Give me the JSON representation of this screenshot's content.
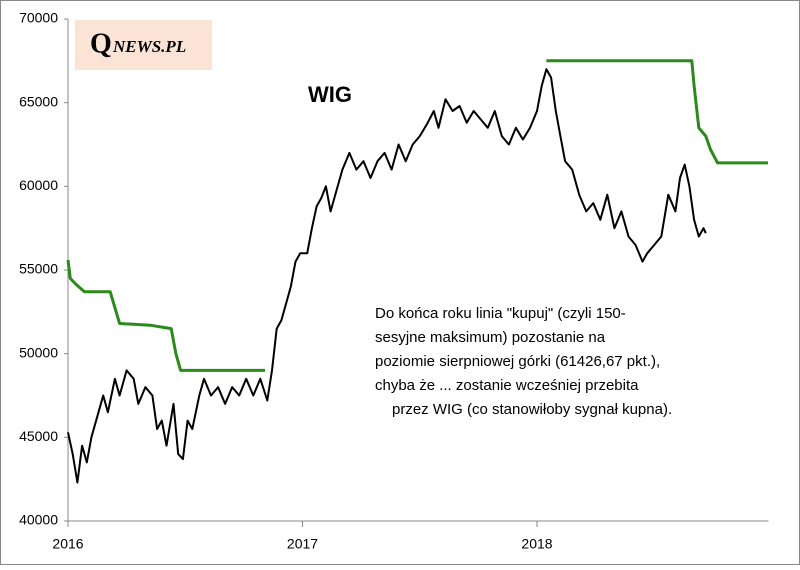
{
  "logo": {
    "initial": "Q",
    "rest": "NEWS.PL"
  },
  "chart_data": {
    "type": "line",
    "title": "WIG",
    "annotation": [
      "Do końca roku linia \"kupuj\" (czyli 150-",
      "sesyjne maksimum) pozostanie na",
      "poziomie sierpniowej górki (61426,67 pkt.),",
      "chyba że ... zostanie wcześniej przebita",
      "przez WIG (co stanowiłoby sygnał kupna)."
    ],
    "xlim": [
      2016,
      2019
    ],
    "xticks": [
      2016,
      2017,
      2018
    ],
    "ylim": [
      40000,
      70000
    ],
    "yticks": [
      40000,
      45000,
      50000,
      55000,
      60000,
      65000,
      70000
    ],
    "grid": false,
    "series": [
      {
        "color": "#000000",
        "x": [
          2016.0,
          2016.02,
          2016.04,
          2016.06,
          2016.08,
          2016.1,
          2016.13,
          2016.15,
          2016.17,
          2016.2,
          2016.22,
          2016.25,
          2016.28,
          2016.3,
          2016.33,
          2016.36,
          2016.38,
          2016.4,
          2016.42,
          2016.45,
          2016.47,
          2016.49,
          2016.51,
          2016.53,
          2016.56,
          2016.58,
          2016.61,
          2016.64,
          2016.67,
          2016.7,
          2016.73,
          2016.76,
          2016.79,
          2016.82,
          2016.85,
          2016.87,
          2016.89,
          2016.91,
          2016.93,
          2016.95,
          2016.97,
          2016.99,
          2017.02,
          2017.04,
          2017.06,
          2017.08,
          2017.1,
          2017.12,
          2017.14,
          2017.17,
          2017.2,
          2017.23,
          2017.26,
          2017.29,
          2017.32,
          2017.35,
          2017.38,
          2017.41,
          2017.44,
          2017.47,
          2017.5,
          2017.53,
          2017.56,
          2017.58,
          2017.61,
          2017.64,
          2017.67,
          2017.7,
          2017.73,
          2017.76,
          2017.79,
          2017.82,
          2017.85,
          2017.88,
          2017.91,
          2017.94,
          2017.97,
          2018.0,
          2018.02,
          2018.04,
          2018.06,
          2018.08,
          2018.1,
          2018.12,
          2018.15,
          2018.18,
          2018.21,
          2018.24,
          2018.27,
          2018.3,
          2018.33,
          2018.36,
          2018.39,
          2018.42,
          2018.45,
          2018.47,
          2018.5,
          2018.53,
          2018.56,
          2018.59,
          2018.61,
          2018.63,
          2018.65,
          2018.67,
          2018.69,
          2018.71,
          2018.72
        ],
        "values": [
          45300,
          44000,
          42300,
          44500,
          43500,
          45000,
          46500,
          47500,
          46500,
          48500,
          47500,
          49000,
          48500,
          47000,
          48000,
          47500,
          45500,
          46000,
          44500,
          47000,
          44000,
          43700,
          46000,
          45500,
          47500,
          48500,
          47500,
          48000,
          47000,
          48000,
          47500,
          48500,
          47500,
          48500,
          47200,
          49000,
          51500,
          52000,
          53000,
          54000,
          55500,
          56000,
          56000,
          57500,
          58800,
          59300,
          60000,
          58500,
          59500,
          61000,
          62000,
          61000,
          61500,
          60500,
          61500,
          62000,
          61000,
          62500,
          61500,
          62500,
          63000,
          63700,
          64500,
          63500,
          65200,
          64500,
          64800,
          63800,
          64500,
          64000,
          63500,
          64500,
          63000,
          62500,
          63500,
          62800,
          63500,
          64500,
          66000,
          67000,
          66500,
          64500,
          63000,
          61500,
          61000,
          59500,
          58500,
          59000,
          58000,
          59500,
          57500,
          58500,
          57000,
          56500,
          55500,
          56000,
          56500,
          57000,
          59500,
          58500,
          60500,
          61300,
          60000,
          58000,
          57000,
          57500,
          57200
        ]
      },
      {
        "color": "#2a8a1a",
        "x": [
          2016.0,
          2016.01,
          2016.03,
          2016.07,
          2016.18,
          2016.22,
          2016.35,
          2016.44,
          2016.46,
          2016.48,
          2016.84,
          2016.85,
          2018.04,
          2018.66,
          2018.67,
          2018.69,
          2018.72,
          2018.74,
          2018.77,
          2018.985
        ],
        "values": [
          55600,
          54500,
          54200,
          53700,
          53700,
          51800,
          51700,
          51500,
          50000,
          49000,
          49000,
          null,
          67500,
          67500,
          66000,
          63500,
          63000,
          62200,
          61400,
          61400
        ]
      }
    ]
  }
}
